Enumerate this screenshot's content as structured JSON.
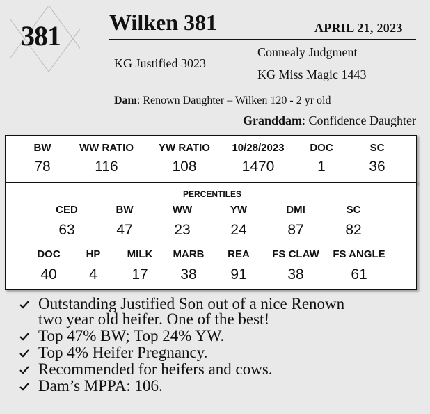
{
  "lot_number": "381",
  "title": "Wilken 381",
  "birth_date": "APRIL  21, 2023",
  "pedigree": {
    "sire": "KG Justified 3023",
    "sire_sire": "Connealy Judgment",
    "sire_dam": "KG Miss Magic 1443"
  },
  "dam": {
    "label": "Dam",
    "value": "Renown Daughter – Wilken 120 - 2 yr old"
  },
  "granddam": {
    "label": "Granddam",
    "value": "Confidence Daughter"
  },
  "stats": [
    {
      "label": "BW",
      "value": "78"
    },
    {
      "label": "WW RATIO",
      "value": "116"
    },
    {
      "label": "YW RATIO",
      "value": "108"
    },
    {
      "label": "10/28/2023",
      "value": "1470"
    },
    {
      "label": "DOC",
      "value": "1"
    },
    {
      "label": "SC",
      "value": "36"
    }
  ],
  "percentiles": {
    "title": "PERCENTILES",
    "row1": [
      {
        "label": "CED",
        "value": "63"
      },
      {
        "label": "BW",
        "value": "47"
      },
      {
        "label": "WW",
        "value": "23"
      },
      {
        "label": "YW",
        "value": "24"
      },
      {
        "label": "DMI",
        "value": "87"
      },
      {
        "label": "SC",
        "value": "82"
      }
    ],
    "row2": [
      {
        "label": "DOC",
        "value": "40"
      },
      {
        "label": "HP",
        "value": "4"
      },
      {
        "label": "MILK",
        "value": "17"
      },
      {
        "label": "MARB",
        "value": "38"
      },
      {
        "label": "REA",
        "value": "91"
      },
      {
        "label": "FS CLAW",
        "value": "38"
      },
      {
        "label": "FS ANGLE",
        "value": "61"
      }
    ]
  },
  "bullets": [
    {
      "icon": "checkmark-icon",
      "lines": [
        "Outstanding Justified Son out of a nice Renown",
        "two year old heifer. One of the best!"
      ]
    },
    {
      "icon": "checkmark-icon",
      "lines": [
        "Top 47% BW; Top 24% YW."
      ]
    },
    {
      "icon": "checkmark-icon",
      "lines": [
        "Top 4% Heifer Pregnancy."
      ]
    },
    {
      "icon": "checkmark-icon",
      "lines": [
        "Recommended for heifers and cows."
      ]
    },
    {
      "icon": "checkmark-icon",
      "lines": [
        "Dam’s MPPA: 106."
      ]
    }
  ]
}
